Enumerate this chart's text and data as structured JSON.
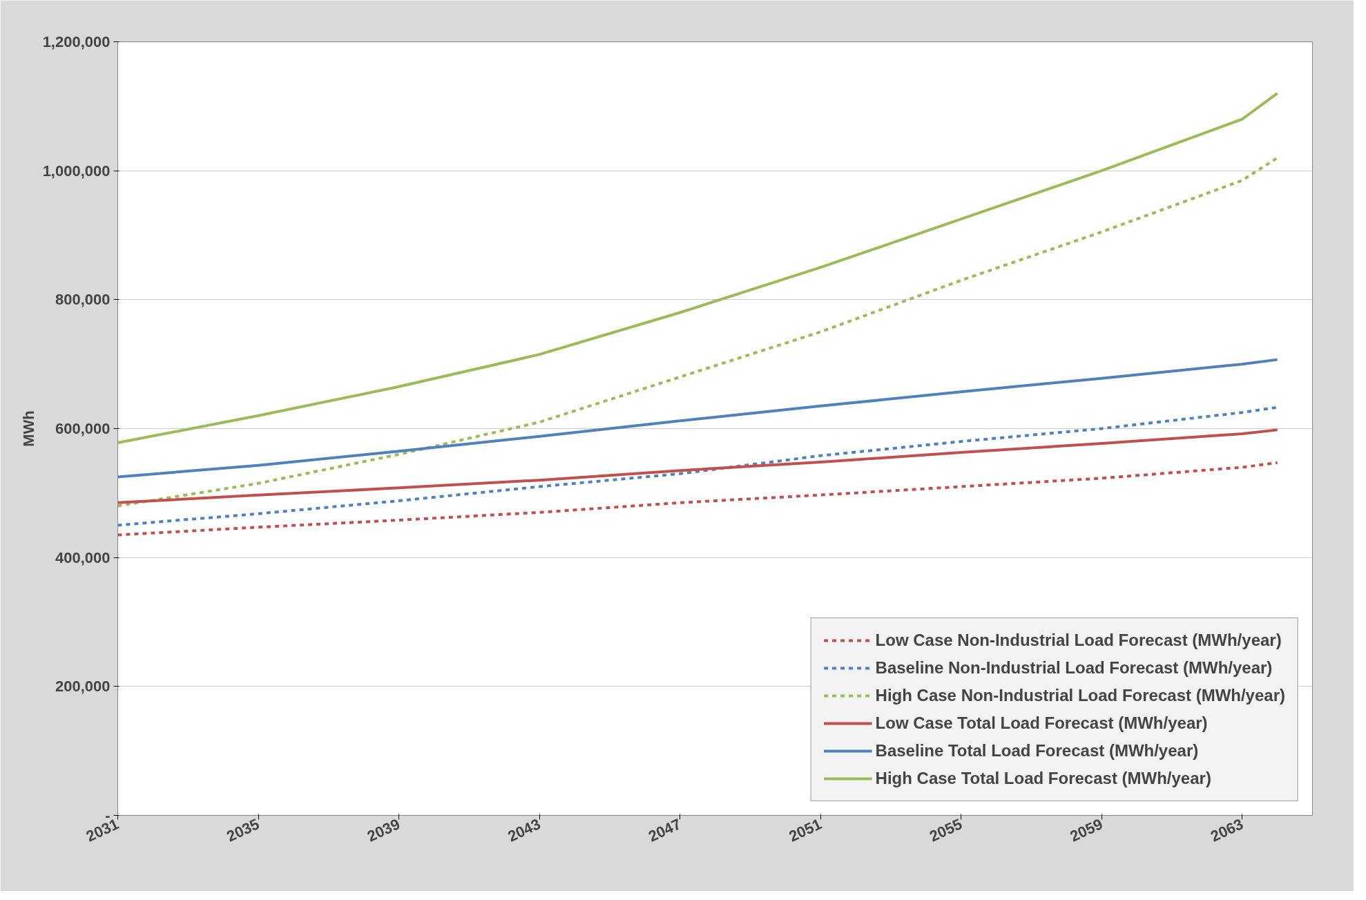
{
  "chart_data": {
    "type": "line",
    "ylabel": "MWh",
    "x": [
      2031,
      2035,
      2039,
      2043,
      2047,
      2051,
      2055,
      2059,
      2063,
      2064
    ],
    "series": [
      {
        "name": "Low Case Non-Industrial Load Forecast (MWh/year)",
        "color": "#c0504d",
        "line_style": "dashed",
        "values": [
          435000,
          447000,
          458000,
          470000,
          485000,
          497000,
          510000,
          523000,
          540000,
          547000
        ]
      },
      {
        "name": "Baseline Non-Industrial Load Forecast (MWh/year)",
        "color": "#4f81bd",
        "line_style": "dashed",
        "values": [
          450000,
          468000,
          488000,
          510000,
          530000,
          558000,
          580000,
          600000,
          625000,
          633000
        ]
      },
      {
        "name": "High Case Non-Industrial Load Forecast (MWh/year)",
        "color": "#9bbb59",
        "line_style": "dashed",
        "values": [
          480000,
          515000,
          560000,
          610000,
          680000,
          750000,
          830000,
          905000,
          985000,
          1020000
        ]
      },
      {
        "name": "Low Case Total Load Forecast (MWh/year)",
        "color": "#c0504d",
        "line_style": "solid",
        "values": [
          485000,
          497000,
          508000,
          520000,
          535000,
          548000,
          563000,
          577000,
          592000,
          598000
        ]
      },
      {
        "name": "Baseline Total Load Forecast (MWh/year)",
        "color": "#4f81bd",
        "line_style": "solid",
        "values": [
          525000,
          543000,
          565000,
          588000,
          612000,
          635000,
          657000,
          678000,
          700000,
          707000
        ]
      },
      {
        "name": "High Case Total Load Forecast (MWh/year)",
        "color": "#9bbb59",
        "line_style": "solid",
        "values": [
          578000,
          620000,
          665000,
          715000,
          780000,
          850000,
          925000,
          1000000,
          1080000,
          1120000
        ]
      }
    ],
    "xlim": [
      2031,
      2065
    ],
    "xticks": [
      2031,
      2035,
      2039,
      2043,
      2047,
      2051,
      2055,
      2059,
      2063
    ],
    "ylim": [
      0,
      1200000
    ],
    "yticks": [
      {
        "value": 0,
        "label": "-"
      },
      {
        "value": 200000,
        "label": "200,000"
      },
      {
        "value": 400000,
        "label": "400,000"
      },
      {
        "value": 600000,
        "label": "600,000"
      },
      {
        "value": 800000,
        "label": "800,000"
      },
      {
        "value": 1000000,
        "label": "1,000,000"
      },
      {
        "value": 1200000,
        "label": "1,200,000"
      }
    ],
    "grid": "y",
    "legend": "bottom right"
  }
}
